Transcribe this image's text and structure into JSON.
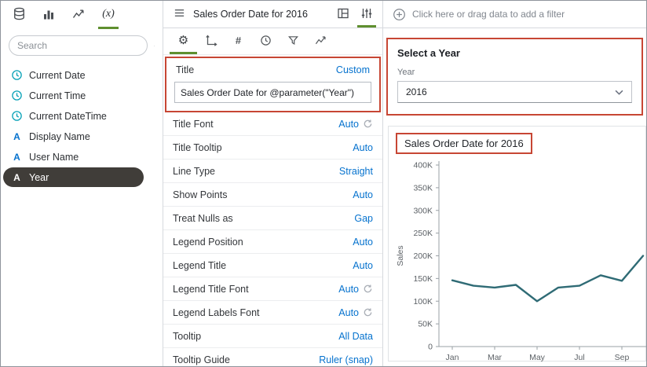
{
  "colors": {
    "accent": "#0572ce",
    "annotation": "#c74634",
    "active_tab_underline": "#5f8f2f",
    "selected_item_bg": "#403d39",
    "line": "#2f6b75"
  },
  "left_sidebar": {
    "tabs": [
      {
        "name": "data"
      },
      {
        "name": "visualizations"
      },
      {
        "name": "analytics"
      },
      {
        "name": "parameters",
        "active": true
      }
    ],
    "search_placeholder": "Search",
    "items": [
      {
        "label": "Current Date",
        "icon": "clock-icon",
        "selected": false
      },
      {
        "label": "Current Time",
        "icon": "clock-icon",
        "selected": false
      },
      {
        "label": "Current DateTime",
        "icon": "clock-icon",
        "selected": false
      },
      {
        "label": "Display Name",
        "icon": "attribute-icon",
        "selected": false
      },
      {
        "label": "User Name",
        "icon": "attribute-icon",
        "selected": false
      },
      {
        "label": "Year",
        "icon": "attribute-icon",
        "selected": true
      }
    ]
  },
  "properties_panel": {
    "header_title": "Sales Order Date for 2016",
    "tabs": [
      "general",
      "axis",
      "values",
      "date-time",
      "filter",
      "analytics"
    ],
    "title_row": {
      "label": "Title",
      "value": "Custom"
    },
    "title_input": "Sales Order Date for @parameter(\"Year\")",
    "rows": [
      {
        "label": "Title Font",
        "value": "Auto",
        "refresh": true
      },
      {
        "label": "Title Tooltip",
        "value": "Auto",
        "refresh": false
      },
      {
        "label": "Line Type",
        "value": "Straight",
        "refresh": false
      },
      {
        "label": "Show Points",
        "value": "Auto",
        "refresh": false
      },
      {
        "label": "Treat Nulls as",
        "value": "Gap",
        "refresh": false
      },
      {
        "label": "Legend Position",
        "value": "Auto",
        "refresh": false
      },
      {
        "label": "Legend Title",
        "value": "Auto",
        "refresh": false
      },
      {
        "label": "Legend Title Font",
        "value": "Auto",
        "refresh": true
      },
      {
        "label": "Legend Labels Font",
        "value": "Auto",
        "refresh": true
      },
      {
        "label": "Tooltip",
        "value": "All Data",
        "refresh": false
      },
      {
        "label": "Tooltip Guide",
        "value": "Ruler (snap)",
        "refresh": false
      }
    ]
  },
  "filter_bar": {
    "label": "Click here or drag data to add a filter"
  },
  "parameter_card": {
    "title": "Select a Year",
    "field_label": "Year",
    "selected_value": "2016"
  },
  "chart_data": {
    "type": "line",
    "title": "Sales Order Date for 2016",
    "ylabel": "Sales",
    "xlabel": "",
    "x": [
      "Jan",
      "Feb",
      "Mar",
      "Apr",
      "May",
      "Jun",
      "Jul",
      "Aug",
      "Sep",
      "Oct"
    ],
    "x_tick_labels": [
      "Jan",
      "",
      "Mar",
      "",
      "May",
      "",
      "Jul",
      "",
      "Sep",
      ""
    ],
    "values": [
      146000,
      134000,
      130000,
      136000,
      100000,
      130000,
      134000,
      157000,
      145000,
      200000
    ],
    "ylim": [
      0,
      400000
    ],
    "y_tick_values": [
      0,
      50000,
      100000,
      150000,
      200000,
      250000,
      300000,
      350000,
      400000
    ],
    "y_tick_labels": [
      "0",
      "50K",
      "100K",
      "150K",
      "200K",
      "250K",
      "300K",
      "350K",
      "400K"
    ],
    "grid": false,
    "legend": "none",
    "line_color": "#2f6b75"
  }
}
